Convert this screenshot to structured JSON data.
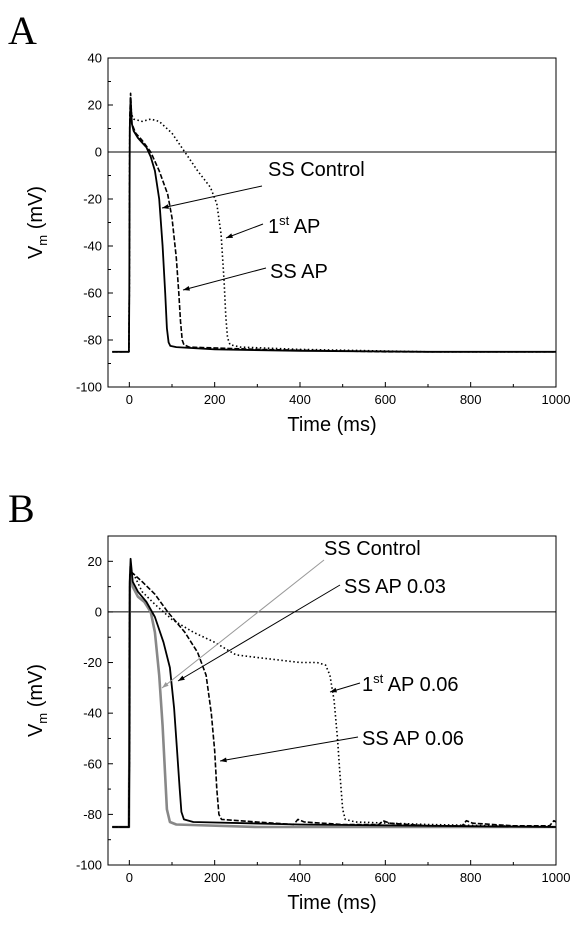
{
  "chart_data": [
    {
      "panel": "A",
      "type": "line",
      "xlabel": "Time (ms)",
      "ylabel_main": "V",
      "ylabel_sub": "m",
      "ylabel_unit": " (mV)",
      "xlim": [
        -50,
        1000
      ],
      "ylim": [
        -100,
        40
      ],
      "xticks": [
        0,
        200,
        400,
        600,
        800,
        1000
      ],
      "yticks": [
        -100,
        -80,
        -60,
        -40,
        -20,
        0,
        20,
        40
      ],
      "reference_line_y": 0,
      "series": [
        {
          "style": "solid",
          "color": "#000000",
          "points": [
            [
              -40,
              -85
            ],
            [
              -2,
              -85
            ],
            [
              -1,
              -85
            ],
            [
              0,
              -60
            ],
            [
              1,
              10
            ],
            [
              3,
              23
            ],
            [
              6,
              12
            ],
            [
              10,
              9
            ],
            [
              20,
              6
            ],
            [
              30,
              4
            ],
            [
              40,
              2
            ],
            [
              50,
              -2
            ],
            [
              60,
              -8
            ],
            [
              70,
              -20
            ],
            [
              78,
              -40
            ],
            [
              84,
              -60
            ],
            [
              88,
              -75
            ],
            [
              92,
              -81
            ],
            [
              96,
              -82.5
            ],
            [
              110,
              -83
            ],
            [
              200,
              -84
            ],
            [
              400,
              -84.6
            ],
            [
              700,
              -85
            ],
            [
              1000,
              -85
            ]
          ]
        },
        {
          "style": "dashed",
          "color": "#000000",
          "points": [
            [
              -40,
              -85
            ],
            [
              -2,
              -85
            ],
            [
              -1,
              -85
            ],
            [
              0,
              -60
            ],
            [
              1,
              15
            ],
            [
              3,
              25
            ],
            [
              6,
              12
            ],
            [
              15,
              8
            ],
            [
              30,
              5
            ],
            [
              50,
              0
            ],
            [
              70,
              -8
            ],
            [
              90,
              -18
            ],
            [
              100,
              -28
            ],
            [
              110,
              -45
            ],
            [
              116,
              -60
            ],
            [
              120,
              -72
            ],
            [
              124,
              -80
            ],
            [
              128,
              -82
            ],
            [
              140,
              -83
            ],
            [
              300,
              -84
            ],
            [
              600,
              -85
            ],
            [
              1000,
              -85
            ]
          ]
        },
        {
          "style": "dotted",
          "color": "#000000",
          "points": [
            [
              -40,
              -85
            ],
            [
              -2,
              -85
            ],
            [
              -1,
              -85
            ],
            [
              0,
              -60
            ],
            [
              1,
              16
            ],
            [
              3,
              17
            ],
            [
              10,
              14
            ],
            [
              30,
              13
            ],
            [
              50,
              14
            ],
            [
              70,
              13
            ],
            [
              100,
              8
            ],
            [
              130,
              0
            ],
            [
              160,
              -8
            ],
            [
              190,
              -15
            ],
            [
              205,
              -22
            ],
            [
              215,
              -35
            ],
            [
              222,
              -55
            ],
            [
              226,
              -70
            ],
            [
              230,
              -79
            ],
            [
              236,
              -82
            ],
            [
              260,
              -83
            ],
            [
              400,
              -84
            ],
            [
              700,
              -85
            ],
            [
              1000,
              -85
            ]
          ]
        }
      ],
      "annotations": [
        {
          "text": "SS Control",
          "sup": ""
        },
        {
          "text": "1",
          "sup": "st",
          "after": " AP"
        },
        {
          "text": "SS AP",
          "sup": ""
        }
      ]
    },
    {
      "panel": "B",
      "type": "line",
      "xlabel": "Time (ms)",
      "ylabel_main": "V",
      "ylabel_sub": "m",
      "ylabel_unit": " (mV)",
      "xlim": [
        -50,
        1000
      ],
      "ylim": [
        -100,
        30
      ],
      "xticks": [
        0,
        200,
        400,
        600,
        800,
        1000
      ],
      "yticks": [
        -100,
        -80,
        -60,
        -40,
        -20,
        0,
        20
      ],
      "reference_line_y": 0,
      "series": [
        {
          "style": "solid",
          "color": "#888888",
          "points": [
            [
              -40,
              -85
            ],
            [
              -2,
              -85
            ],
            [
              -1,
              -85
            ],
            [
              0,
              -60
            ],
            [
              1,
              10
            ],
            [
              3,
              18
            ],
            [
              8,
              10
            ],
            [
              20,
              6
            ],
            [
              35,
              4
            ],
            [
              50,
              0
            ],
            [
              60,
              -8
            ],
            [
              70,
              -25
            ],
            [
              78,
              -45
            ],
            [
              84,
              -65
            ],
            [
              88,
              -78
            ],
            [
              95,
              -83
            ],
            [
              110,
              -84
            ],
            [
              300,
              -85
            ],
            [
              1000,
              -85
            ]
          ]
        },
        {
          "style": "solid",
          "color": "#000000",
          "points": [
            [
              -40,
              -85
            ],
            [
              -2,
              -85
            ],
            [
              -1,
              -85
            ],
            [
              0,
              -60
            ],
            [
              1,
              12
            ],
            [
              3,
              21
            ],
            [
              8,
              12
            ],
            [
              20,
              8
            ],
            [
              40,
              4
            ],
            [
              60,
              -2
            ],
            [
              80,
              -12
            ],
            [
              95,
              -22
            ],
            [
              105,
              -38
            ],
            [
              112,
              -55
            ],
            [
              118,
              -70
            ],
            [
              122,
              -79
            ],
            [
              128,
              -82
            ],
            [
              150,
              -83
            ],
            [
              400,
              -84
            ],
            [
              1000,
              -85
            ]
          ]
        },
        {
          "style": "dashed",
          "color": "#000000",
          "points": [
            [
              -40,
              -85
            ],
            [
              -2,
              -85
            ],
            [
              -1,
              -85
            ],
            [
              0,
              -60
            ],
            [
              1,
              14
            ],
            [
              3,
              16
            ],
            [
              10,
              15
            ],
            [
              30,
              12
            ],
            [
              60,
              7
            ],
            [
              90,
              0
            ],
            [
              130,
              -8
            ],
            [
              160,
              -16
            ],
            [
              180,
              -25
            ],
            [
              192,
              -40
            ],
            [
              200,
              -55
            ],
            [
              205,
              -70
            ],
            [
              210,
              -80
            ],
            [
              216,
              -82
            ],
            [
              300,
              -83
            ],
            [
              385,
              -84
            ],
            [
              395,
              -82
            ],
            [
              410,
              -83
            ],
            [
              500,
              -84
            ],
            [
              585,
              -84
            ],
            [
              595,
              -82.5
            ],
            [
              610,
              -83.5
            ],
            [
              700,
              -84.5
            ],
            [
              780,
              -84.5
            ],
            [
              790,
              -82.5
            ],
            [
              805,
              -83.5
            ],
            [
              900,
              -84.5
            ],
            [
              985,
              -84.5
            ],
            [
              995,
              -82.5
            ],
            [
              1000,
              -83
            ]
          ]
        },
        {
          "style": "dotted",
          "color": "#000000",
          "points": [
            [
              -40,
              -85
            ],
            [
              -2,
              -85
            ],
            [
              -1,
              -85
            ],
            [
              0,
              -60
            ],
            [
              1,
              14
            ],
            [
              3,
              17
            ],
            [
              10,
              15
            ],
            [
              30,
              8
            ],
            [
              60,
              3
            ],
            [
              100,
              -3
            ],
            [
              150,
              -8
            ],
            [
              200,
              -12
            ],
            [
              230,
              -15
            ],
            [
              250,
              -17
            ],
            [
              300,
              -18
            ],
            [
              350,
              -19
            ],
            [
              400,
              -20
            ],
            [
              440,
              -20
            ],
            [
              460,
              -21
            ],
            [
              470,
              -25
            ],
            [
              480,
              -35
            ],
            [
              488,
              -50
            ],
            [
              494,
              -65
            ],
            [
              500,
              -78
            ],
            [
              506,
              -82
            ],
            [
              530,
              -83
            ],
            [
              700,
              -84
            ],
            [
              1000,
              -85
            ]
          ]
        }
      ],
      "annotations": [
        {
          "text": "SS Control",
          "sup": "",
          "color": "#999999"
        },
        {
          "text": "SS AP 0.03",
          "sup": ""
        },
        {
          "text": "1",
          "sup": "st",
          "after": " AP 0.06"
        },
        {
          "text": "SS AP 0.06",
          "sup": ""
        }
      ]
    }
  ]
}
